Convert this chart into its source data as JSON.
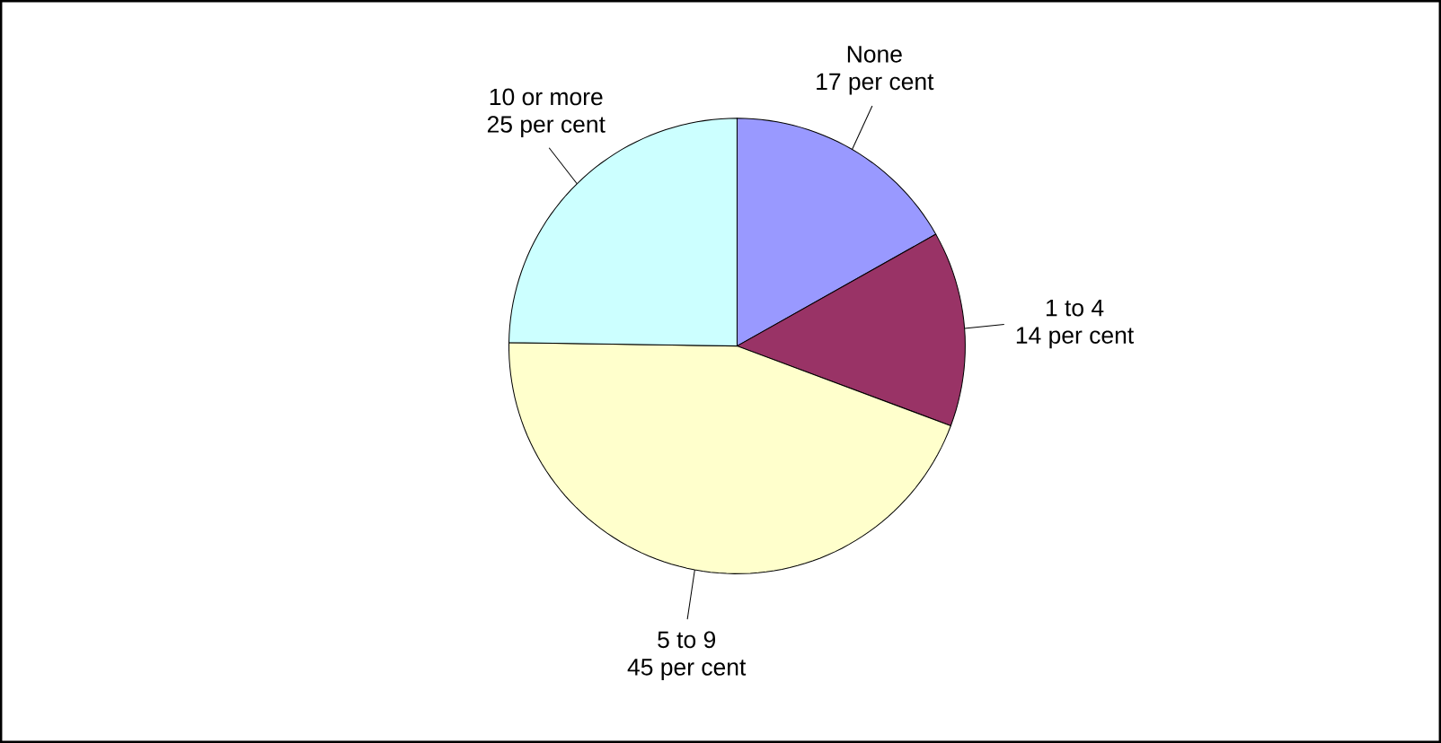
{
  "chart_data": {
    "type": "pie",
    "categories": [
      "None",
      "1 to 4",
      "5 to 9",
      "10 or more"
    ],
    "values": [
      17,
      14,
      45,
      25
    ],
    "value_labels": [
      "17 per cent",
      "14 per cent",
      "45 per cent",
      "25 per cent"
    ],
    "colors": [
      "#9999ff",
      "#993366",
      "#ffffcc",
      "#ccffff"
    ]
  }
}
